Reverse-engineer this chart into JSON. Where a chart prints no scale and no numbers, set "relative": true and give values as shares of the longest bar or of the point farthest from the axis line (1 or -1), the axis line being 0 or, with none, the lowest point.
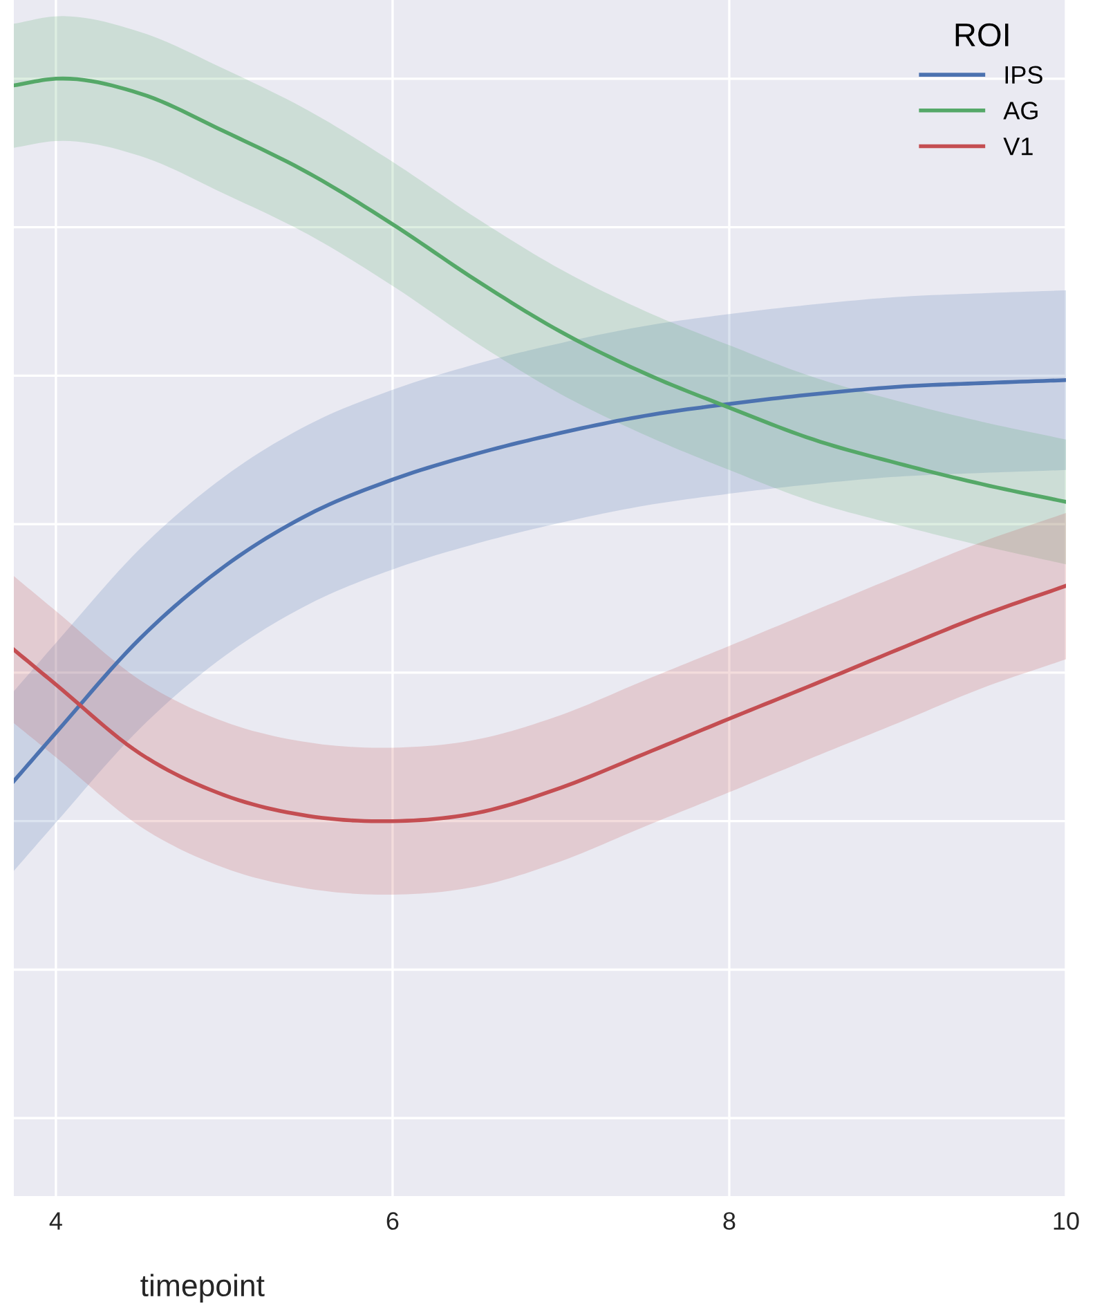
{
  "chart_data": {
    "type": "line",
    "xlabel": "timepoint",
    "legend_title": "ROI",
    "legend": "top right",
    "grid": true,
    "relative": true,
    "tick_labels": "x",
    "line_style": "solid",
    "marker": "none",
    "x": [
      3.75,
      4,
      4.5,
      5,
      5.5,
      6,
      6.5,
      7,
      7.5,
      8,
      8.5,
      9,
      9.5,
      10
    ],
    "xlim": [
      3.75,
      10
    ],
    "xticks": [
      4,
      6,
      8,
      10
    ],
    "series": [
      {
        "name": "IPS",
        "color": "#4c72b0",
        "values": [
          0.054,
          0.119,
          0.246,
          0.343,
          0.413,
          0.46,
          0.495,
          0.523,
          0.546,
          0.562,
          0.575,
          0.585,
          0.59,
          0.594
        ],
        "upper": [
          0.175,
          0.24,
          0.367,
          0.464,
          0.534,
          0.581,
          0.616,
          0.644,
          0.667,
          0.683,
          0.696,
          0.706,
          0.711,
          0.715
        ],
        "lower": [
          -0.067,
          -0.002,
          0.125,
          0.222,
          0.292,
          0.339,
          0.374,
          0.402,
          0.425,
          0.441,
          0.454,
          0.464,
          0.469,
          0.473
        ]
      },
      {
        "name": "AG",
        "color": "#55a868",
        "values": [
          0.991,
          1.0,
          0.98,
          0.929,
          0.873,
          0.804,
          0.728,
          0.659,
          0.603,
          0.557,
          0.514,
          0.482,
          0.454,
          0.43
        ],
        "upper": [
          1.074,
          1.084,
          1.063,
          1.013,
          0.957,
          0.888,
          0.812,
          0.743,
          0.687,
          0.641,
          0.598,
          0.566,
          0.538,
          0.514
        ],
        "lower": [
          0.907,
          0.916,
          0.896,
          0.845,
          0.79,
          0.721,
          0.644,
          0.575,
          0.52,
          0.473,
          0.43,
          0.399,
          0.371,
          0.346
        ]
      },
      {
        "name": "V1",
        "color": "#c44e52",
        "values": [
          0.231,
          0.184,
          0.091,
          0.035,
          0.007,
          0.0,
          0.011,
          0.045,
          0.091,
          0.138,
          0.184,
          0.231,
          0.277,
          0.317
        ],
        "upper": [
          0.33,
          0.283,
          0.19,
          0.134,
          0.106,
          0.099,
          0.11,
          0.143,
          0.19,
          0.236,
          0.283,
          0.33,
          0.376,
          0.415
        ],
        "lower": [
          0.132,
          0.086,
          -0.007,
          -0.063,
          -0.091,
          -0.099,
          -0.088,
          -0.054,
          -0.007,
          0.039,
          0.086,
          0.132,
          0.179,
          0.218
        ]
      }
    ]
  }
}
